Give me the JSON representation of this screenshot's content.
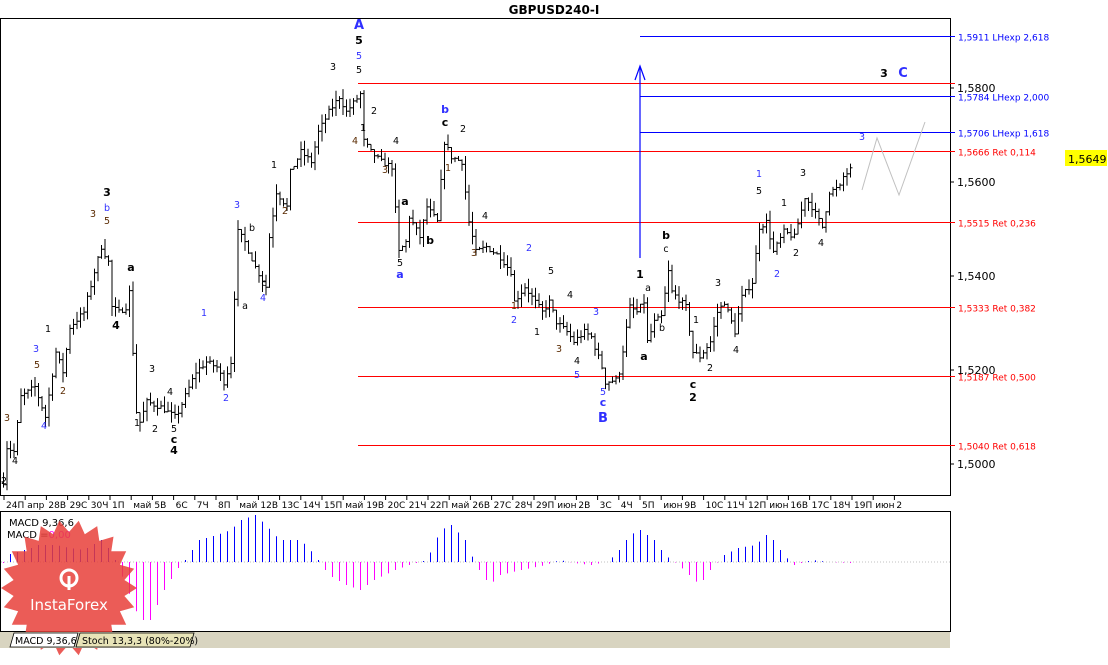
{
  "window": {
    "title": "GBPUSD240-I"
  },
  "chart_data": {
    "type": "ohlc",
    "title": "GBPUSD240-I",
    "timeframe": "H4",
    "ylim": [
      1.4935,
      1.6015
    ],
    "y_ticks": [
      "1,5800",
      "1,5600",
      "1,5400",
      "1,5200",
      "1,5000"
    ],
    "y_tick_values": [
      1.58,
      1.56,
      1.54,
      1.52,
      1.5
    ],
    "x_ticks": [
      "24П",
      "апр",
      "28В",
      "29С",
      "30Ч",
      "1П",
      "май",
      "5В",
      "6С",
      "7Ч",
      "8П",
      "май",
      "12В",
      "13С",
      "14Ч",
      "15П",
      "май",
      "19В",
      "20С",
      "21Ч",
      "22П",
      "май",
      "26В",
      "27С",
      "28Ч",
      "29П",
      "июн",
      "2В",
      "3С",
      "4Ч",
      "5П",
      "июн",
      "9В",
      "10С",
      "11Ч",
      "12П",
      "июн",
      "16В",
      "17С",
      "18Ч",
      "19П",
      "июн",
      "2"
    ],
    "current_price": "1,5649",
    "price_path": [
      [
        0,
        1.4962
      ],
      [
        1,
        1.5036
      ],
      [
        3,
        1.5026
      ],
      [
        5,
        1.5143
      ],
      [
        9,
        1.5164
      ],
      [
        12,
        1.51
      ],
      [
        15,
        1.5238
      ],
      [
        17,
        1.5196
      ],
      [
        19,
        1.5291
      ],
      [
        23,
        1.5323
      ],
      [
        26,
        1.5409
      ],
      [
        28,
        1.5462
      ],
      [
        30,
        1.543
      ],
      [
        31,
        1.5334
      ],
      [
        33,
        1.5323
      ],
      [
        35,
        1.5334
      ],
      [
        36,
        1.5366
      ],
      [
        38,
        1.5111
      ],
      [
        39,
        1.5089
      ],
      [
        41,
        1.5132
      ],
      [
        45,
        1.5121
      ],
      [
        49,
        1.51
      ],
      [
        50,
        1.5111
      ],
      [
        55,
        1.5196
      ],
      [
        58,
        1.5217
      ],
      [
        61,
        1.5206
      ],
      [
        63,
        1.5174
      ],
      [
        65,
        1.5217
      ],
      [
        67,
        1.5494
      ],
      [
        69,
        1.5472
      ],
      [
        72,
        1.5419
      ],
      [
        75,
        1.5377
      ],
      [
        76,
        1.5483
      ],
      [
        78,
        1.5579
      ],
      [
        81,
        1.5547
      ],
      [
        82,
        1.5621
      ],
      [
        85,
        1.5664
      ],
      [
        88,
        1.5643
      ],
      [
        90,
        1.5706
      ],
      [
        93,
        1.5749
      ],
      [
        96,
        1.5781
      ],
      [
        98,
        1.5749
      ],
      [
        102,
        1.5787
      ],
      [
        103,
        1.5687
      ],
      [
        105,
        1.5664
      ],
      [
        108,
        1.5643
      ],
      [
        111,
        1.5632
      ],
      [
        113,
        1.5451
      ],
      [
        115,
        1.5472
      ],
      [
        116,
        1.5526
      ],
      [
        119,
        1.5483
      ],
      [
        121,
        1.5547
      ],
      [
        124,
        1.5515
      ],
      [
        126,
        1.5685
      ],
      [
        128,
        1.5653
      ],
      [
        131,
        1.5643
      ],
      [
        133,
        1.5515
      ],
      [
        135,
        1.5451
      ],
      [
        138,
        1.5462
      ],
      [
        142,
        1.544
      ],
      [
        145,
        1.5409
      ],
      [
        146,
        1.5345
      ],
      [
        149,
        1.5377
      ],
      [
        151,
        1.5355
      ],
      [
        154,
        1.5323
      ],
      [
        156,
        1.5345
      ],
      [
        158,
        1.5302
      ],
      [
        161,
        1.5281
      ],
      [
        163,
        1.526
      ],
      [
        166,
        1.5281
      ],
      [
        168,
        1.527
      ],
      [
        171,
        1.5206
      ],
      [
        172,
        1.5174
      ],
      [
        175,
        1.5179
      ],
      [
        176,
        1.5196
      ],
      [
        179,
        1.5334
      ],
      [
        181,
        1.5323
      ],
      [
        183,
        1.5345
      ],
      [
        184,
        1.526
      ],
      [
        186,
        1.5302
      ],
      [
        188,
        1.5313
      ],
      [
        190,
        1.5409
      ],
      [
        191,
        1.5366
      ],
      [
        195,
        1.5334
      ],
      [
        197,
        1.5238
      ],
      [
        199,
        1.5228
      ],
      [
        202,
        1.526
      ],
      [
        204,
        1.5323
      ],
      [
        206,
        1.5345
      ],
      [
        209,
        1.5281
      ],
      [
        211,
        1.5355
      ],
      [
        214,
        1.5387
      ],
      [
        216,
        1.5504
      ],
      [
        218,
        1.5515
      ],
      [
        220,
        1.5451
      ],
      [
        223,
        1.5494
      ],
      [
        226,
        1.5483
      ],
      [
        229,
        1.5568
      ],
      [
        231,
        1.5547
      ],
      [
        234,
        1.5504
      ],
      [
        236,
        1.5579
      ],
      [
        239,
        1.5589
      ],
      [
        240,
        1.5611
      ],
      [
        242,
        1.5626
      ]
    ],
    "macd": {
      "name": "MACD 9,36,6",
      "value_label": "MACD =",
      "value": "0,00",
      "positive_color": "#0000ff",
      "negative_color": "#ff00ff",
      "histogram_path": [
        [
          1,
          0.0007
        ],
        [
          8,
          0.0014
        ],
        [
          10,
          0.0017
        ],
        [
          15,
          0.0017
        ],
        [
          19,
          0.0014
        ],
        [
          23,
          0.0012
        ],
        [
          28,
          0.0022
        ],
        [
          30,
          0.0014
        ],
        [
          32,
          0.0002
        ],
        [
          35,
          -0.0023
        ],
        [
          39,
          -0.0058
        ],
        [
          42,
          -0.0058
        ],
        [
          46,
          -0.0028
        ],
        [
          50,
          -0.0006
        ],
        [
          52,
          0.0002
        ],
        [
          56,
          0.0022
        ],
        [
          61,
          0.0027
        ],
        [
          65,
          0.0032
        ],
        [
          68,
          0.0042
        ],
        [
          72,
          0.0047
        ],
        [
          75,
          0.0037
        ],
        [
          79,
          0.0022
        ],
        [
          85,
          0.0022
        ],
        [
          89,
          0.0007
        ],
        [
          93,
          -0.0013
        ],
        [
          98,
          -0.0023
        ],
        [
          102,
          -0.0028
        ],
        [
          106,
          -0.0018
        ],
        [
          112,
          -0.0008
        ],
        [
          116,
          -0.0003
        ],
        [
          121,
          0.0002
        ],
        [
          125,
          0.0032
        ],
        [
          128,
          0.0037
        ],
        [
          132,
          0.0022
        ],
        [
          135,
          -0.0003
        ],
        [
          139,
          -0.0023
        ],
        [
          142,
          -0.0013
        ],
        [
          148,
          -0.0008
        ],
        [
          155,
          -0.0003
        ],
        [
          159,
          0.0002
        ],
        [
          163,
          -0.0001
        ],
        [
          168,
          -0.0003
        ],
        [
          172,
          0.0
        ],
        [
          175,
          0.0007
        ],
        [
          179,
          0.0027
        ],
        [
          182,
          0.0032
        ],
        [
          186,
          0.0022
        ],
        [
          189,
          0.0007
        ],
        [
          193,
          -0.0003
        ],
        [
          196,
          -0.0013
        ],
        [
          199,
          -0.0023
        ],
        [
          202,
          -0.0008
        ],
        [
          206,
          0.0007
        ],
        [
          210,
          0.0014
        ],
        [
          215,
          0.0017
        ],
        [
          218,
          0.0027
        ],
        [
          220,
          0.0022
        ],
        [
          223,
          0.0007
        ],
        [
          226,
          -0.0003
        ],
        [
          231,
          0.0002
        ],
        [
          236,
          0.0
        ],
        [
          242,
          -0.0001
        ]
      ]
    },
    "levels": [
      {
        "price": 1.5911,
        "label": "1,5911 LHexp 2,618",
        "color": "#0000ff"
      },
      {
        "price": 1.581,
        "label": "",
        "color": "#ff0000"
      },
      {
        "price": 1.5784,
        "label": "1,5784 LHexp 2,000",
        "color": "#0000ff"
      },
      {
        "price": 1.5706,
        "label": "1,5706 LHexp 1,618",
        "color": "#0000ff"
      },
      {
        "price": 1.5666,
        "label": "1,5666 Ret 0,114",
        "color": "#ff0000"
      },
      {
        "price": 1.5515,
        "label": "1,5515 Ret 0,236",
        "color": "#ff0000"
      },
      {
        "price": 1.5333,
        "label": "1,5333 Ret 0,382",
        "color": "#ff0000"
      },
      {
        "price": 1.5187,
        "label": "1,5187 Ret 0,500",
        "color": "#ff0000"
      },
      {
        "price": 1.504,
        "label": "1,5040 Ret 0,618",
        "color": "#ff0000"
      }
    ],
    "projection_color": "#c0c0c0",
    "wave_labels": [
      "2",
      "3",
      "4",
      "3",
      "5",
      "4",
      "1",
      "2",
      "3",
      "5",
      "3",
      "b",
      "4",
      "a",
      "1",
      "3",
      "2",
      "4",
      "5",
      "c",
      "4",
      "1",
      "2",
      "3",
      "b",
      "a",
      "c",
      "4",
      "A",
      "5",
      "5",
      "5",
      "3",
      "1",
      "2",
      "2",
      "1",
      "4",
      "4",
      "3",
      "b",
      "c",
      "2",
      "1",
      "a",
      "b",
      "5",
      "a",
      "4",
      "3",
      "2",
      "5",
      "1",
      "2",
      "1",
      "3",
      "4",
      "4",
      "5",
      "3",
      "5",
      "c",
      "B",
      "1",
      "a",
      "b",
      "a",
      "b",
      "c",
      "1",
      "3",
      "2",
      "4",
      "c",
      "2",
      "3",
      "C",
      "3",
      "1",
      "5",
      "1",
      "3",
      "2",
      "2",
      "4"
    ]
  },
  "indicator_tabs": [
    "MACD 9,36,6",
    "Stoch 13,3,3 (80%-20%)"
  ],
  "watermark": {
    "brand": "InstaForex"
  }
}
